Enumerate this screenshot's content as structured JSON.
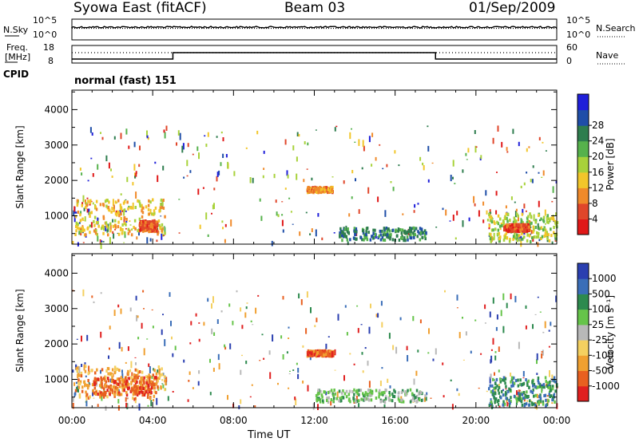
{
  "header": {
    "station": "Syowa East (fitACF)",
    "beam": "Beam 03",
    "date": "01/Sep/2009"
  },
  "noise_panel": {
    "left_label": "N.Sky",
    "right_label": "N.Search",
    "left_ticks": [
      "10^5",
      "10^0"
    ],
    "right_ticks": [
      "10^5",
      "10^0"
    ]
  },
  "freq_panel": {
    "left_label_1": "Freq.",
    "left_label_2": "[MHz]",
    "right_label": "Nave",
    "left_ticks": [
      "18",
      "8"
    ],
    "right_ticks": [
      "60",
      "0"
    ]
  },
  "cpid": {
    "label": "CPID",
    "value": "normal (fast) 151"
  },
  "chart_data": [
    {
      "type": "heatmap",
      "name": "power-panel",
      "xlabel": "Time UT",
      "ylabel": "Slant Range [km]",
      "y_ticks": [
        "1000",
        "2000",
        "3000",
        "4000"
      ],
      "y_tick_values": [
        1000,
        2000,
        3000,
        4000
      ],
      "ylim": [
        200,
        4550
      ],
      "xlim_hours": [
        0,
        24
      ],
      "colorbar": {
        "label": "Power [dB]",
        "tick_labels": [
          "4",
          "8",
          "12",
          "16",
          "20",
          "24",
          "28"
        ],
        "colors": [
          "#1f1fd9",
          "#1f4ea8",
          "#2e7d4e",
          "#56b24c",
          "#a8d23a",
          "#f2c62a",
          "#f08a2a",
          "#e0462a",
          "#e01818"
        ]
      },
      "echo_regions": [
        {
          "t_start": 0.1,
          "t_end": 4.6,
          "r_start": 500,
          "r_end": 1500,
          "level": 5
        },
        {
          "t_start": 3.3,
          "t_end": 4.2,
          "r_start": 600,
          "r_end": 900,
          "level": 7
        },
        {
          "t_start": 11.6,
          "t_end": 12.9,
          "r_start": 1700,
          "r_end": 1850,
          "level": 6
        },
        {
          "t_start": 13.2,
          "t_end": 17.5,
          "r_start": 350,
          "r_end": 700,
          "level": 2
        },
        {
          "t_start": 20.6,
          "t_end": 24.0,
          "r_start": 300,
          "r_end": 1100,
          "level": 4
        },
        {
          "t_start": 21.4,
          "t_end": 22.6,
          "r_start": 600,
          "r_end": 800,
          "level": 7
        }
      ]
    },
    {
      "type": "heatmap",
      "name": "velocity-panel",
      "xlabel": "Time UT",
      "ylabel": "Slant Range [km]",
      "y_ticks": [
        "1000",
        "2000",
        "3000",
        "4000"
      ],
      "y_tick_values": [
        1000,
        2000,
        3000,
        4000
      ],
      "ylim": [
        200,
        4550
      ],
      "xlim_hours": [
        0,
        24
      ],
      "colorbar": {
        "label": "Velocity [m s⁻¹]",
        "tick_labels": [
          "1000",
          "500",
          "100",
          "25",
          "-25",
          "-100",
          "-500",
          "-1000"
        ],
        "colors": [
          "#2a3fb0",
          "#3a6eb8",
          "#2d8a4e",
          "#66c44a",
          "#b8b8b8",
          "#f4d060",
          "#f0a030",
          "#e86020",
          "#e02020"
        ]
      },
      "echo_regions": [
        {
          "t_start": 0.1,
          "t_end": 4.6,
          "r_start": 500,
          "r_end": 1400,
          "level": 6
        },
        {
          "t_start": 1.0,
          "t_end": 4.2,
          "r_start": 600,
          "r_end": 1100,
          "level": 7
        },
        {
          "t_start": 11.6,
          "t_end": 12.9,
          "r_start": 1700,
          "r_end": 1850,
          "level": 7
        },
        {
          "t_start": 12.0,
          "t_end": 17.5,
          "r_start": 400,
          "r_end": 750,
          "level": 3
        },
        {
          "t_start": 20.6,
          "t_end": 24.0,
          "r_start": 300,
          "r_end": 1100,
          "level": 2
        }
      ]
    }
  ],
  "x_axis": {
    "tick_labels": [
      "00:00",
      "04:00",
      "08:00",
      "12:00",
      "16:00",
      "20:00",
      "00:00"
    ],
    "tick_hours": [
      0,
      4,
      8,
      12,
      16,
      20,
      24
    ],
    "label": "Time UT"
  }
}
